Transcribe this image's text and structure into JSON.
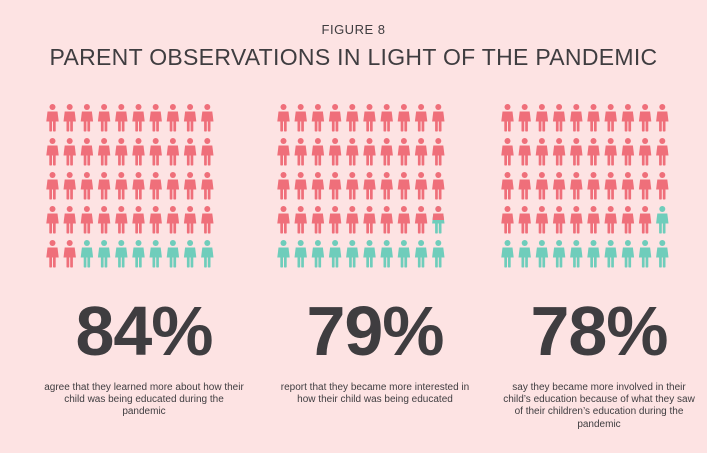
{
  "figure_label": "FIGURE 8",
  "title": "PARENT OBSERVATIONS IN LIGHT OF THE PANDEMIC",
  "colors": {
    "filled": "#ef6f7a",
    "remainder": "#6fcdbb",
    "background": "#fde3e3",
    "text": "#3f3d40"
  },
  "chart_data": {
    "type": "pictograph",
    "icons_per_panel": 50,
    "grid": {
      "rows": 5,
      "columns": 10
    },
    "icon": "person-icon",
    "panels": [
      {
        "value": 84,
        "label": "84%",
        "description": "agree that they learned more about how their child was being educated during the pandemic"
      },
      {
        "value": 79,
        "label": "79%",
        "description": "report that they became more interested in how their child was being educated"
      },
      {
        "value": 78,
        "label": "78%",
        "description": "say they became more involved in their child’s education because of what they saw of their children’s education during the pandemic"
      }
    ]
  }
}
